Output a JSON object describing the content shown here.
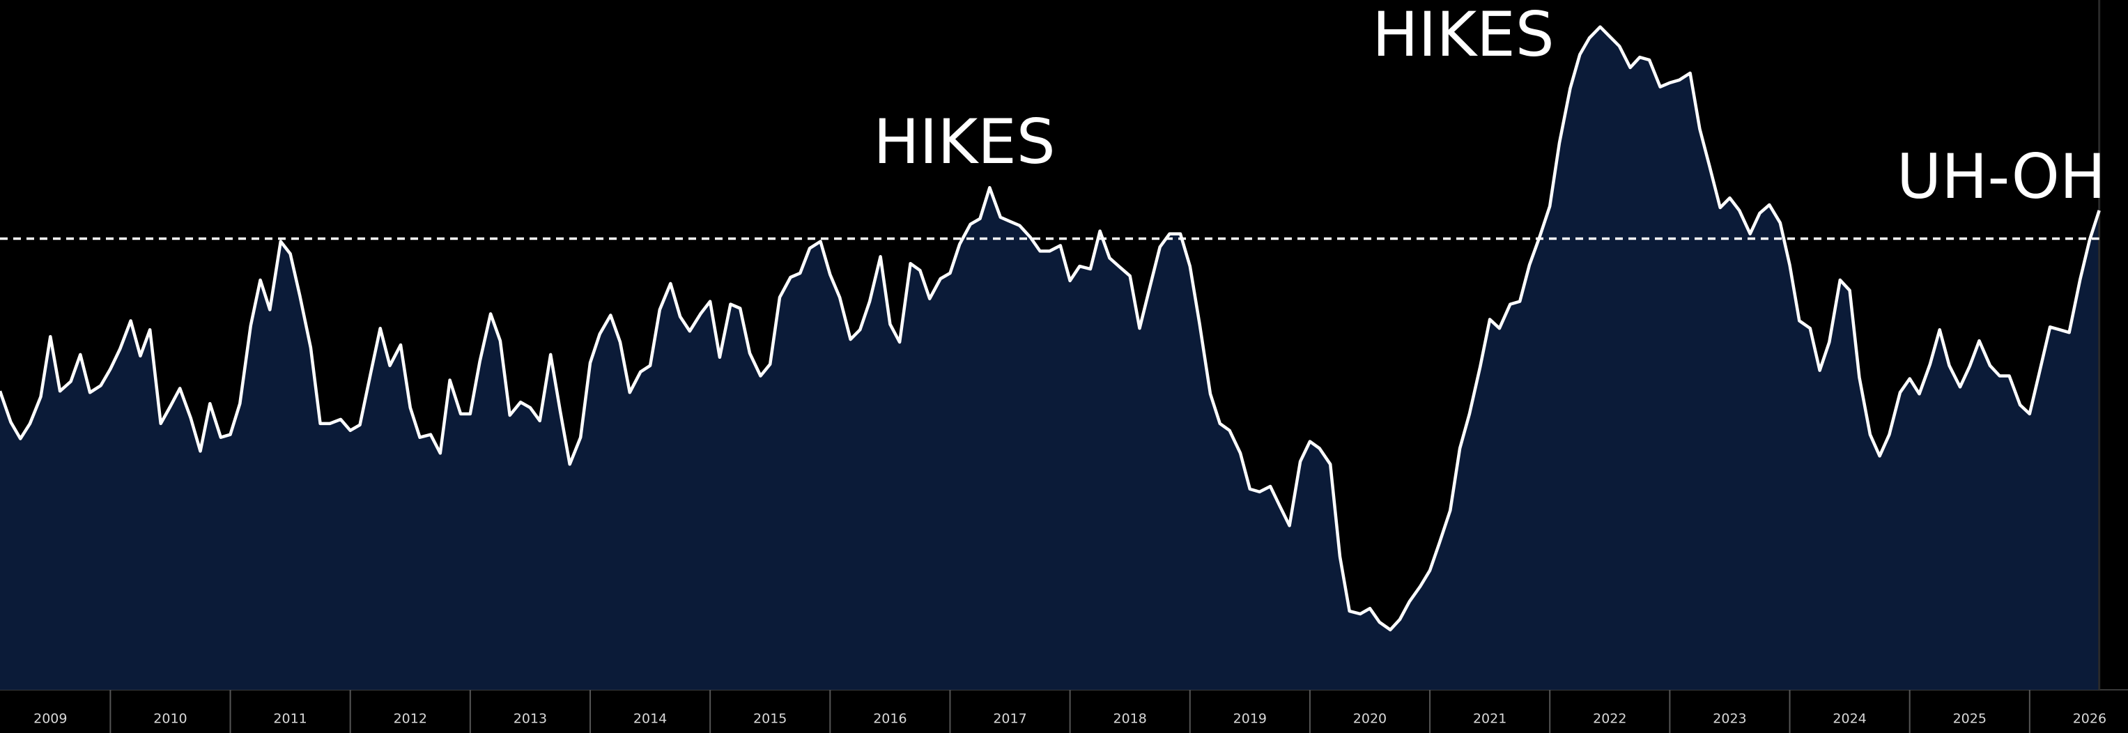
{
  "chart_data": {
    "type": "area",
    "annotations": [
      "HIKES",
      "HIKES",
      "UH-OH"
    ],
    "line_color": "#ffffff",
    "fill_color": "#0b1b38",
    "reference_line": 65.4,
    "xlim": [
      2009.08,
      2026.82
    ],
    "ylim": [
      0,
      100
    ],
    "xticks": [
      2009,
      2010,
      2011,
      2012,
      2013,
      2014,
      2015,
      2016,
      2017,
      2018,
      2019,
      2020,
      2021,
      2022,
      2023,
      2024,
      2025,
      2026
    ],
    "x": [
      2009.08,
      2009.17,
      2009.25,
      2009.33,
      2009.42,
      2009.5,
      2009.58,
      2009.67,
      2009.75,
      2009.83,
      2009.92,
      2010.0,
      2010.08,
      2010.17,
      2010.25,
      2010.33,
      2010.42,
      2010.5,
      2010.58,
      2010.67,
      2010.75,
      2010.83,
      2010.92,
      2011.0,
      2011.08,
      2011.17,
      2011.25,
      2011.33,
      2011.42,
      2011.5,
      2011.58,
      2011.67,
      2011.75,
      2011.83,
      2011.92,
      2012.0,
      2012.08,
      2012.17,
      2012.25,
      2012.33,
      2012.42,
      2012.5,
      2012.58,
      2012.67,
      2012.75,
      2012.83,
      2012.92,
      2013.0,
      2013.08,
      2013.17,
      2013.25,
      2013.33,
      2013.42,
      2013.5,
      2013.58,
      2013.67,
      2013.75,
      2013.83,
      2013.92,
      2014.0,
      2014.08,
      2014.17,
      2014.25,
      2014.33,
      2014.42,
      2014.5,
      2014.58,
      2014.67,
      2014.75,
      2014.83,
      2014.92,
      2015.0,
      2015.08,
      2015.17,
      2015.25,
      2015.33,
      2015.42,
      2015.5,
      2015.58,
      2015.67,
      2015.75,
      2015.83,
      2015.92,
      2016.0,
      2016.08,
      2016.17,
      2016.25,
      2016.33,
      2016.42,
      2016.5,
      2016.58,
      2016.67,
      2016.75,
      2016.83,
      2016.92,
      2017.0,
      2017.08,
      2017.17,
      2017.25,
      2017.33,
      2017.42,
      2017.5,
      2017.58,
      2017.67,
      2017.75,
      2017.83,
      2017.92,
      2018.0,
      2018.08,
      2018.17,
      2018.25,
      2018.33,
      2018.42,
      2018.5,
      2018.58,
      2018.67,
      2018.75,
      2018.83,
      2018.92,
      2019.0,
      2019.08,
      2019.17,
      2019.25,
      2019.33,
      2019.42,
      2019.5,
      2019.58,
      2019.67,
      2019.75,
      2019.83,
      2019.92,
      2020.0,
      2020.08,
      2020.17,
      2020.25,
      2020.33,
      2020.42,
      2020.5,
      2020.58,
      2020.67,
      2020.75,
      2020.83,
      2020.92,
      2021.0,
      2021.08,
      2021.17,
      2021.25,
      2021.33,
      2021.42,
      2021.5,
      2021.58,
      2021.67,
      2021.75,
      2021.83,
      2021.92,
      2022.0,
      2022.08,
      2022.17,
      2022.25,
      2022.33,
      2022.42,
      2022.5,
      2022.58,
      2022.67,
      2022.75,
      2022.83,
      2022.92,
      2023.0,
      2023.08,
      2023.17,
      2023.25,
      2023.33,
      2023.42,
      2023.5,
      2023.58,
      2023.67,
      2023.75,
      2023.83,
      2023.92,
      2024.0,
      2024.08,
      2024.17,
      2024.25,
      2024.33,
      2024.42,
      2024.5,
      2024.58,
      2024.67,
      2024.75,
      2024.83,
      2024.92,
      2025.0,
      2025.08,
      2025.17,
      2025.25,
      2025.33,
      2025.42,
      2025.5,
      2025.58,
      2025.67,
      2025.75,
      2025.83,
      2025.92,
      2026.0,
      2026.08,
      2026.17,
      2026.25,
      2026.33,
      2026.42,
      2026.5,
      2026.58
    ],
    "values": [
      43.3,
      38.8,
      36.4,
      38.6,
      42.5,
      51.2,
      43.3,
      44.7,
      48.6,
      43.1,
      44.1,
      46.5,
      49.4,
      53.5,
      48.4,
      52.2,
      38.6,
      41.1,
      43.7,
      39.4,
      34.6,
      41.5,
      36.6,
      37.0,
      41.5,
      52.8,
      59.4,
      55.1,
      65.0,
      63.2,
      57.1,
      49.6,
      38.6,
      38.6,
      39.2,
      37.6,
      38.4,
      45.9,
      52.4,
      47.0,
      50.0,
      40.9,
      36.6,
      37.0,
      34.3,
      44.9,
      40.0,
      40.0,
      47.6,
      54.5,
      50.6,
      39.8,
      41.7,
      40.9,
      39.0,
      48.6,
      40.4,
      32.7,
      36.6,
      47.4,
      51.6,
      54.3,
      50.4,
      43.1,
      46.1,
      47.0,
      55.1,
      58.9,
      54.1,
      52.0,
      54.5,
      56.3,
      48.2,
      55.9,
      55.3,
      48.8,
      45.5,
      47.2,
      56.9,
      59.8,
      60.4,
      64.0,
      65.0,
      60.2,
      56.9,
      50.8,
      52.2,
      56.3,
      62.8,
      53.0,
      50.4,
      61.8,
      60.8,
      56.7,
      59.6,
      60.4,
      64.6,
      67.5,
      68.3,
      72.8,
      68.5,
      67.9,
      67.3,
      65.6,
      63.6,
      63.6,
      64.4,
      59.3,
      61.4,
      61.0,
      66.5,
      62.6,
      61.2,
      60.0,
      52.4,
      58.7,
      64.2,
      66.1,
      66.1,
      61.4,
      53.1,
      42.9,
      38.6,
      37.6,
      34.3,
      29.1,
      28.7,
      29.5,
      26.6,
      23.8,
      33.1,
      36.0,
      35.0,
      32.7,
      19.3,
      11.4,
      11.0,
      11.8,
      9.8,
      8.7,
      10.2,
      12.8,
      15.0,
      17.3,
      21.3,
      26.0,
      35.0,
      40.0,
      46.9,
      53.7,
      52.4,
      55.9,
      56.3,
      61.6,
      65.9,
      70.1,
      79.3,
      87.2,
      92.1,
      94.5,
      96.1,
      94.7,
      93.3,
      90.2,
      91.7,
      91.3,
      87.4,
      88.0,
      88.4,
      89.4,
      81.3,
      76.0,
      69.9,
      71.3,
      69.5,
      66.1,
      69.1,
      70.3,
      67.7,
      61.6,
      53.5,
      52.4,
      46.3,
      50.4,
      59.4,
      57.9,
      45.3,
      37.0,
      33.9,
      37.0,
      43.1,
      45.1,
      42.9,
      47.2,
      52.2,
      47.0,
      43.9,
      46.9,
      50.6,
      47.0,
      45.5,
      45.5,
      41.3,
      40.0,
      45.9,
      52.6,
      52.2,
      51.8,
      59.4,
      65.2,
      69.5
    ]
  }
}
